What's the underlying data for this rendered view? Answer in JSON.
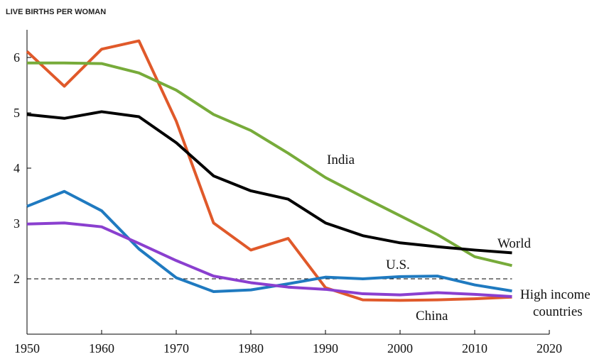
{
  "chart_data": {
    "type": "line",
    "ylabel": "LIVE BIRTHS PER WOMAN",
    "x": [
      1950,
      1955,
      1960,
      1965,
      1970,
      1975,
      1980,
      1985,
      1990,
      1995,
      2000,
      2005,
      2010,
      2015
    ],
    "series": [
      {
        "name": "China",
        "color": "#e0592a",
        "values": [
          6.11,
          5.48,
          6.15,
          6.3,
          4.85,
          3.01,
          2.52,
          2.73,
          1.84,
          1.62,
          1.61,
          1.62,
          1.64,
          1.67
        ]
      },
      {
        "name": "India",
        "color": "#77ab3a",
        "values": [
          5.9,
          5.9,
          5.89,
          5.72,
          5.41,
          4.97,
          4.68,
          4.27,
          3.83,
          3.48,
          3.14,
          2.8,
          2.4,
          2.24
        ]
      },
      {
        "name": "U.S.",
        "color": "#1f7ac0",
        "values": [
          3.31,
          3.58,
          3.23,
          2.54,
          2.02,
          1.77,
          1.8,
          1.91,
          2.03,
          2.0,
          2.04,
          2.05,
          1.89,
          1.78
        ]
      },
      {
        "name": "High income countries",
        "color": "#8a3fcf",
        "values": [
          2.99,
          3.01,
          2.94,
          2.64,
          2.33,
          2.05,
          1.93,
          1.85,
          1.81,
          1.73,
          1.71,
          1.75,
          1.72,
          1.68
        ]
      },
      {
        "name": "World",
        "color": "#000000",
        "values": [
          4.97,
          4.9,
          5.02,
          4.93,
          4.46,
          3.86,
          3.59,
          3.44,
          3.01,
          2.78,
          2.65,
          2.58,
          2.52,
          2.47
        ]
      }
    ],
    "reference_line": 2,
    "xlim": [
      1950,
      2020
    ],
    "xticks": [
      1950,
      1960,
      1970,
      1980,
      1990,
      2000,
      2010,
      2020
    ],
    "ylim": [
      1,
      6.5
    ],
    "yticks": [
      2,
      3,
      4,
      5,
      6
    ]
  }
}
